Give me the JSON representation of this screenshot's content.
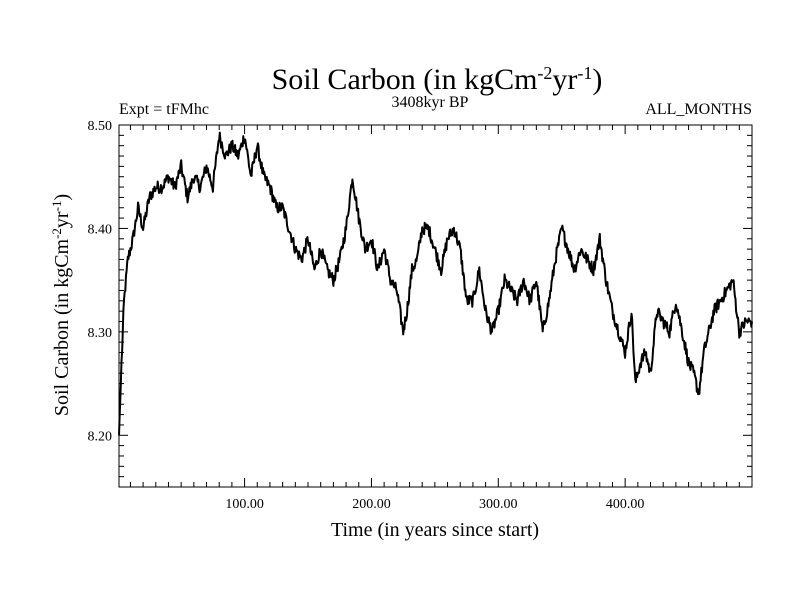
{
  "chart_data": {
    "type": "line",
    "title": {
      "main": "Soil Carbon (in kgCm",
      "sup1": "-2",
      "mid": "yr",
      "sup2": "-1",
      "end": ")"
    },
    "subtitle": "3408kyr BP",
    "top_left_label": "Expt = tFMhc",
    "top_right_label": "ALL_MONTHS",
    "xlabel": "Time (in years since start)",
    "ylabel": {
      "main": "Soil Carbon (in kgCm",
      "sup1": "-2",
      "mid": "yr",
      "sup2": "-1",
      "end": ")"
    },
    "xlim": [
      1,
      500
    ],
    "ylim": [
      8.15,
      8.5
    ],
    "x_ticks": [
      100,
      200,
      300,
      400
    ],
    "x_tick_labels": [
      "100.00",
      "200.00",
      "300.00",
      "400.00"
    ],
    "y_ticks": [
      8.2,
      8.3,
      8.4,
      8.5
    ],
    "y_tick_labels": [
      "8.20",
      "8.30",
      "8.40",
      "8.50"
    ],
    "color": "#000000",
    "series": [
      {
        "name": "Soil Carbon",
        "x": [
          1,
          3,
          5,
          8,
          12,
          16,
          20,
          25,
          30,
          35,
          40,
          45,
          50,
          55,
          60,
          65,
          70,
          75,
          80,
          85,
          90,
          95,
          100,
          105,
          110,
          115,
          120,
          125,
          130,
          135,
          140,
          145,
          150,
          155,
          160,
          165,
          170,
          175,
          180,
          185,
          190,
          195,
          200,
          205,
          210,
          215,
          220,
          225,
          228,
          232,
          236,
          240,
          245,
          250,
          255,
          260,
          265,
          270,
          275,
          280,
          285,
          290,
          295,
          300,
          305,
          310,
          315,
          320,
          325,
          330,
          335,
          340,
          345,
          350,
          355,
          360,
          365,
          370,
          375,
          380,
          385,
          390,
          395,
          400,
          405,
          408,
          412,
          416,
          420,
          425,
          430,
          435,
          440,
          445,
          450,
          454,
          458,
          462,
          466,
          470,
          475,
          480,
          485,
          490,
          495,
          500
        ],
        "values": [
          8.2,
          8.27,
          8.33,
          8.37,
          8.39,
          8.42,
          8.4,
          8.43,
          8.44,
          8.44,
          8.45,
          8.44,
          8.46,
          8.43,
          8.45,
          8.44,
          8.46,
          8.44,
          8.49,
          8.47,
          8.48,
          8.47,
          8.49,
          8.45,
          8.48,
          8.45,
          8.44,
          8.42,
          8.42,
          8.4,
          8.38,
          8.37,
          8.39,
          8.36,
          8.38,
          8.36,
          8.35,
          8.37,
          8.4,
          8.45,
          8.41,
          8.38,
          8.39,
          8.36,
          8.38,
          8.35,
          8.34,
          8.3,
          8.32,
          8.36,
          8.37,
          8.4,
          8.4,
          8.38,
          8.36,
          8.39,
          8.4,
          8.38,
          8.33,
          8.33,
          8.36,
          8.32,
          8.3,
          8.32,
          8.35,
          8.34,
          8.33,
          8.35,
          8.33,
          8.35,
          8.3,
          8.33,
          8.37,
          8.4,
          8.38,
          8.36,
          8.38,
          8.37,
          8.36,
          8.39,
          8.35,
          8.32,
          8.3,
          8.28,
          8.32,
          8.25,
          8.27,
          8.28,
          8.26,
          8.32,
          8.31,
          8.3,
          8.33,
          8.3,
          8.27,
          8.26,
          8.24,
          8.28,
          8.3,
          8.32,
          8.33,
          8.34,
          8.35,
          8.3,
          8.31,
          8.31
        ]
      }
    ]
  }
}
